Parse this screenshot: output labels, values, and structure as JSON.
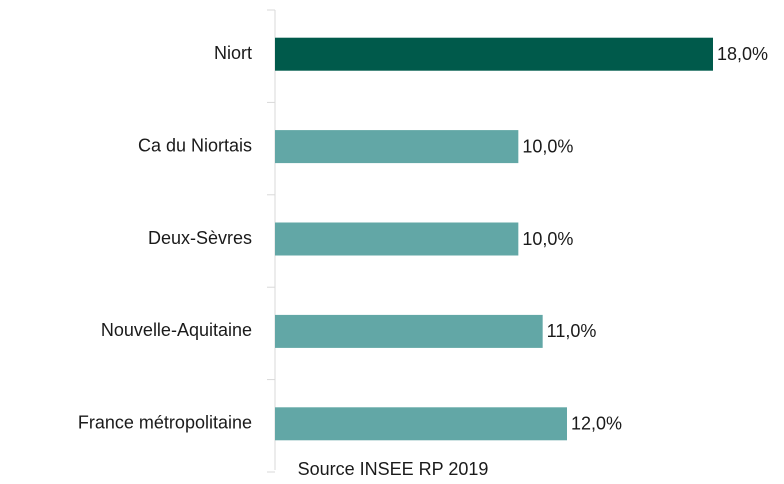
{
  "chart_data": {
    "type": "barh",
    "categories": [
      "Niort",
      "Ca du Niortais",
      "Deux-Sèvres",
      "Nouvelle-Aquitaine",
      "France métropolitaine"
    ],
    "values": [
      18,
      10,
      10,
      11,
      12
    ],
    "value_labels": [
      "18,0%",
      "10,0%",
      "10,0%",
      "11,0%",
      "12,0%"
    ],
    "colors": [
      "#005a4b",
      "#62a7a6",
      "#62a7a6",
      "#62a7a6",
      "#62a7a6"
    ],
    "source": "Source INSEE RP 2019"
  }
}
